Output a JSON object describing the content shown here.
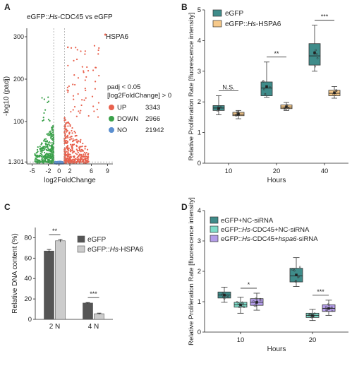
{
  "colors": {
    "up": "#e8614d",
    "down": "#3aa14a",
    "no": "#5b8fd0",
    "egfp_teal": "#3f8c8a",
    "hspa6_orange": "#f6c98a",
    "bar_dark": "#555555",
    "bar_light": "#cccccc",
    "nc_teal": "#3f8c8a",
    "nc_mint": "#7ddcc9",
    "hspa6_purple": "#b39ce8"
  },
  "panels": {
    "A": {
      "letter": "A",
      "title": "eGFP::Hs-CDC45 vs eGFP",
      "title_prefix": "eGFP::",
      "title_italic": "Hs",
      "title_suffix": "-CDC45 vs eGFP",
      "highlight": "HSPA6",
      "legend_line1": "padj < 0.05",
      "legend_line2": "[log2FoldChange] > 0"
    },
    "B": {
      "letter": "B"
    },
    "C": {
      "letter": "C"
    },
    "D": {
      "letter": "D"
    }
  },
  "chart_data": [
    {
      "panel": "A",
      "type": "scatter",
      "title": "eGFP::Hs-CDC45 vs eGFP",
      "xlabel": "log2FoldChange",
      "ylabel": "-log10 (padj)",
      "xticks": [
        -5,
        -2,
        0,
        2,
        6,
        9
      ],
      "yticks": [
        1.301,
        100,
        200,
        300
      ],
      "xlim": [
        -6,
        10
      ],
      "ylim": [
        0,
        320
      ],
      "thresholds": {
        "x": [
          -1,
          1
        ],
        "y": 1.301
      },
      "annotation": {
        "label": "HSPA6",
        "x": 8.6,
        "y": 305
      },
      "legend": [
        {
          "label": "UP",
          "count": 3343,
          "color": "#e8614d"
        },
        {
          "label": "DOWN",
          "count": 2966,
          "color": "#3aa14a"
        },
        {
          "label": "NO",
          "count": 21942,
          "color": "#5b8fd0"
        }
      ]
    },
    {
      "panel": "B",
      "type": "box",
      "ylabel": "Relative Proliferation Rate [fluorescence intensity]",
      "xlabel": "Hours",
      "categories": [
        "10",
        "20",
        "40"
      ],
      "yticks": [
        0,
        1,
        2,
        3,
        4,
        5
      ],
      "ylim": [
        0,
        5
      ],
      "legend_position": "top-left",
      "series": [
        {
          "name": "eGFP",
          "color": "#3f8c8a",
          "boxes": [
            {
              "min": 1.58,
              "q1": 1.72,
              "median": 1.8,
              "q3": 1.88,
              "max": 2.2,
              "mean": 1.79
            },
            {
              "min": 2.15,
              "q1": 2.2,
              "median": 2.45,
              "q3": 2.65,
              "max": 3.3,
              "mean": 2.5
            },
            {
              "min": 3.0,
              "q1": 3.2,
              "median": 3.5,
              "q3": 3.9,
              "max": 4.5,
              "mean": 3.6
            }
          ]
        },
        {
          "name": "eGFP::Hs-HSPA6",
          "name_prefix": "eGFP::",
          "name_italic": "Hs",
          "name_suffix": "-HSPA6",
          "color": "#f6c98a",
          "boxes": [
            {
              "min": 1.45,
              "q1": 1.55,
              "median": 1.6,
              "q3": 1.66,
              "max": 1.72,
              "mean": 1.6
            },
            {
              "min": 1.72,
              "q1": 1.78,
              "median": 1.83,
              "q3": 1.9,
              "max": 1.98,
              "mean": 1.84
            },
            {
              "min": 2.12,
              "q1": 2.2,
              "median": 2.28,
              "q3": 2.38,
              "max": 2.5,
              "mean": 2.3
            }
          ]
        }
      ],
      "significance": [
        "N.S.",
        "**",
        "***"
      ]
    },
    {
      "panel": "C",
      "type": "bar",
      "ylabel": "Relative DNA content (%)",
      "categories": [
        "2 N",
        "4 N"
      ],
      "yticks": [
        0,
        20,
        40,
        60,
        80
      ],
      "ylim": [
        0,
        90
      ],
      "series": [
        {
          "name": "eGFP",
          "color": "#555555",
          "values": [
            67,
            16
          ],
          "errors": [
            1.5,
            0.5
          ]
        },
        {
          "name": "eGFP::Hs-HSPA6",
          "name_prefix": "eGFP::",
          "name_italic": "Hs",
          "name_suffix": "-HSPA6",
          "color": "#cccccc",
          "values": [
            77,
            5.5
          ],
          "errors": [
            1.2,
            0.6
          ]
        }
      ],
      "significance": [
        "**",
        "***"
      ]
    },
    {
      "panel": "D",
      "type": "box",
      "ylabel": "Relative Proliferation Rate [fluorescence intensity]",
      "xlabel": "Hours",
      "categories": [
        "10",
        "20"
      ],
      "yticks": [
        0,
        1,
        2,
        3,
        4
      ],
      "ylim": [
        0,
        4
      ],
      "series": [
        {
          "name": "eGFP+NC-siRNA",
          "color": "#3f8c8a",
          "boxes": [
            {
              "min": 0.98,
              "q1": 1.12,
              "median": 1.22,
              "q3": 1.32,
              "max": 1.48,
              "mean": 1.22
            },
            {
              "min": 1.5,
              "q1": 1.65,
              "median": 1.85,
              "q3": 2.1,
              "max": 2.45,
              "mean": 1.88
            }
          ]
        },
        {
          "name": "eGFP::Hs-CDC45+NC-siRNA",
          "name_prefix": "eGFP::",
          "name_italic": "Hs",
          "name_suffix": "-CDC45+NC-siRNA",
          "color": "#7ddcc9",
          "boxes": [
            {
              "min": 0.62,
              "q1": 0.82,
              "median": 0.9,
              "q3": 0.98,
              "max": 1.15,
              "mean": 0.9
            },
            {
              "min": 0.38,
              "q1": 0.48,
              "median": 0.55,
              "q3": 0.62,
              "max": 0.75,
              "mean": 0.55
            }
          ]
        },
        {
          "name": "eGFP::Hs-CDC45+hspa6-siRNA",
          "name_prefix": "eGFP::",
          "name_italic": "Hs",
          "name_mid": "-CDC45+",
          "name_italic2": "hspa6",
          "name_suffix": "-siRNA",
          "color": "#b39ce8",
          "boxes": [
            {
              "min": 0.72,
              "q1": 0.88,
              "median": 0.98,
              "q3": 1.1,
              "max": 1.28,
              "mean": 0.98
            },
            {
              "min": 0.55,
              "q1": 0.68,
              "median": 0.78,
              "q3": 0.9,
              "max": 1.05,
              "mean": 0.78
            }
          ]
        }
      ],
      "significance": [
        "*",
        "***"
      ]
    }
  ]
}
